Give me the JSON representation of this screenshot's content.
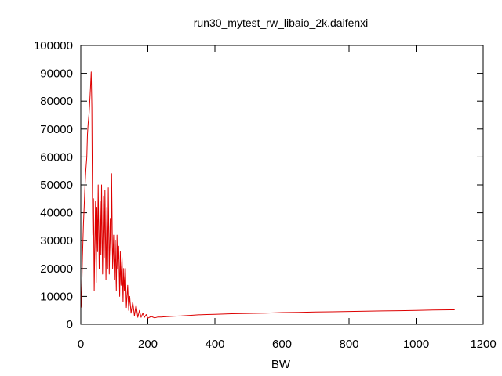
{
  "chart_data": {
    "type": "line",
    "title": "run30_mytest_rw_libaio_2k.daifenxi",
    "xlabel": "BW",
    "ylabel": "",
    "xlim": [
      0,
      1200
    ],
    "ylim": [
      0,
      100000
    ],
    "xticks": [
      0,
      200,
      400,
      600,
      800,
      1000,
      1200
    ],
    "yticks": [
      0,
      10000,
      20000,
      30000,
      40000,
      50000,
      60000,
      70000,
      80000,
      90000,
      100000
    ],
    "grid": false,
    "legend": "none",
    "series": [
      {
        "color": "#dd0000",
        "x": [
          1,
          3,
          5,
          8,
          10,
          12,
          15,
          18,
          20,
          22,
          25,
          27,
          29,
          31,
          33,
          34,
          35,
          36,
          38,
          40,
          42,
          44,
          46,
          48,
          50,
          52,
          55,
          58,
          60,
          62,
          65,
          68,
          70,
          72,
          75,
          78,
          80,
          82,
          85,
          88,
          90,
          92,
          95,
          98,
          100,
          103,
          106,
          108,
          110,
          113,
          116,
          118,
          120,
          123,
          126,
          128,
          130,
          133,
          136,
          140,
          143,
          146,
          150,
          155,
          160,
          165,
          170,
          175,
          180,
          185,
          190,
          195,
          200,
          210,
          220,
          230,
          240,
          250,
          275,
          300,
          325,
          350,
          375,
          400,
          450,
          500,
          550,
          600,
          650,
          700,
          750,
          800,
          850,
          900,
          950,
          1000,
          1050,
          1100,
          1115
        ],
        "y": [
          6000,
          14000,
          24000,
          36000,
          42000,
          48000,
          55000,
          60000,
          68000,
          72000,
          76000,
          80000,
          85000,
          90500,
          78000,
          60000,
          40000,
          32000,
          45000,
          12000,
          30000,
          44000,
          15000,
          42000,
          26000,
          50000,
          20000,
          44000,
          25000,
          50000,
          18000,
          46000,
          24000,
          48000,
          16000,
          42000,
          20000,
          49000,
          18000,
          38000,
          24000,
          54000,
          20000,
          32000,
          16000,
          30000,
          12000,
          32000,
          20000,
          28000,
          10000,
          26000,
          14000,
          24000,
          8000,
          20000,
          12000,
          20000,
          6000,
          14000,
          5000,
          10000,
          4000,
          8000,
          3000,
          7000,
          2500,
          5000,
          2500,
          4000,
          2500,
          3500,
          2200,
          2800,
          2300,
          2600,
          2600,
          2700,
          2900,
          3000,
          3200,
          3400,
          3500,
          3600,
          3800,
          3900,
          4000,
          4200,
          4300,
          4400,
          4500,
          4600,
          4700,
          4800,
          4900,
          5000,
          5100,
          5200,
          5200
        ]
      }
    ]
  }
}
